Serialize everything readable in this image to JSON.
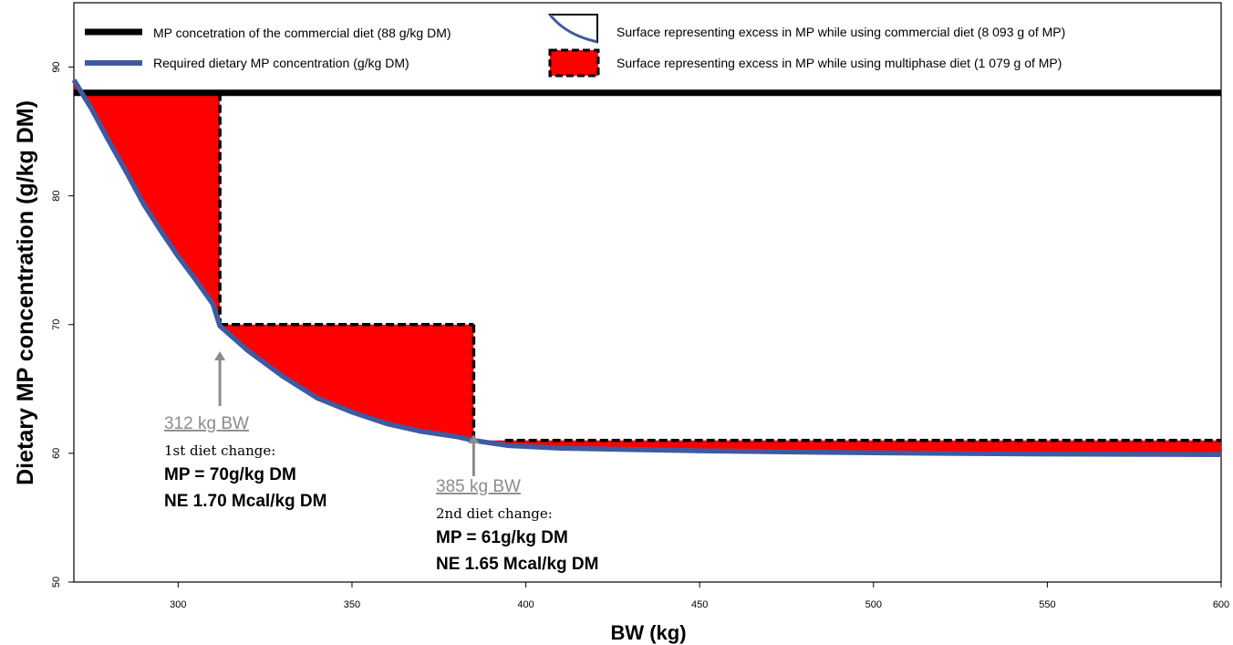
{
  "chart_data": {
    "type": "line",
    "xlabel": "BW (kg)",
    "ylabel": "Dietary MP concentration (g/kg DM)",
    "xlim": [
      270,
      600
    ],
    "ylim": [
      50,
      95
    ],
    "xticks": [
      300,
      350,
      400,
      450,
      500,
      550,
      600
    ],
    "yticks": [
      50,
      60,
      70,
      80,
      90
    ],
    "grid": false,
    "legend_position": "top",
    "colors": {
      "commercial": "#000000",
      "required": "#3e5aa0",
      "excess_fill": "#ff0000",
      "multiphase": "#000000",
      "arrow": "#8c8c8c"
    },
    "legend": [
      {
        "key": "commercial",
        "text": "MP concetration of the commercial diet (88 g/kg DM)"
      },
      {
        "key": "required",
        "text": "Required dietary MP concentration (g/kg DM)"
      },
      {
        "key": "excess_commercial",
        "text": "Surface representing excess in MP while using commercial diet (8 093 g of MP)"
      },
      {
        "key": "excess_multiphase",
        "text": "Surface representing excess in MP while using multiphase diet (1 079 g of MP)"
      }
    ],
    "series": [
      {
        "name": "MP concetration of the commercial diet (88 g/kg DM)",
        "x": [
          270,
          600
        ],
        "y": [
          88,
          88
        ]
      },
      {
        "name": "Required dietary MP concentration (g/kg DM)",
        "x": [
          270,
          275,
          280,
          285,
          290,
          295,
          300,
          305,
          310,
          312,
          320,
          330,
          340,
          350,
          360,
          370,
          380,
          385,
          395,
          410,
          430,
          450,
          480,
          500,
          520,
          550,
          580,
          600
        ],
        "y": [
          89,
          86.8,
          84.3,
          81.9,
          79.4,
          77.3,
          75.3,
          73.5,
          71.6,
          69.9,
          68.0,
          66.0,
          64.3,
          63.2,
          62.3,
          61.7,
          61.3,
          61.0,
          60.6,
          60.4,
          60.3,
          60.2,
          60.1,
          60.05,
          60.0,
          59.95,
          59.92,
          59.9
        ]
      },
      {
        "name": "Surface representing excess in MP while using multiphase diet (1 079 g of MP)",
        "steps": [
          {
            "x_start": 270,
            "x_end": 312,
            "y": 88
          },
          {
            "x_start": 312,
            "x_end": 385,
            "y": 70
          },
          {
            "x_start": 385,
            "x_end": 600,
            "y": 61
          }
        ]
      }
    ],
    "annotations": [
      {
        "x": 312,
        "title": "312 kg BW",
        "subtitle": "1st diet change:",
        "line1": "MP = 70g/kg DM",
        "line2": "NE 1.70 Mcal/kg DM"
      },
      {
        "x": 385,
        "title": "385 kg BW",
        "subtitle": "2nd diet change:",
        "line1": "MP = 61g/kg DM",
        "line2": "NE 1.65 Mcal/kg DM"
      }
    ]
  }
}
